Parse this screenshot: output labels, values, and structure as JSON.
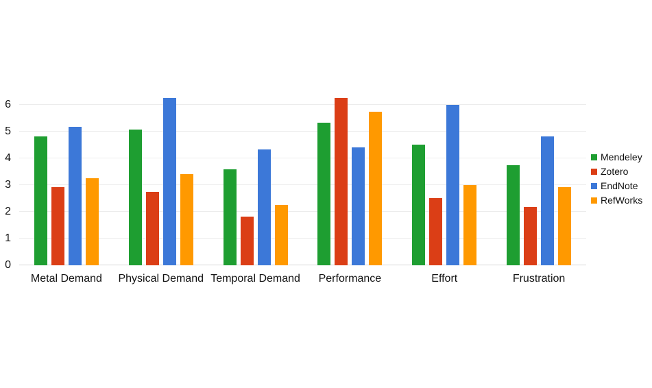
{
  "chart_data": {
    "type": "bar",
    "title": "",
    "xlabel": "",
    "ylabel": "",
    "categories": [
      "Metal Demand",
      "Physical Demand",
      "Temporal Demand",
      "Performance",
      "Effort",
      "Frustration"
    ],
    "series": [
      {
        "name": "Mendeley",
        "color": "#1e9e31",
        "values": [
          4.83,
          5.08,
          3.58,
          5.33,
          4.5,
          3.75
        ]
      },
      {
        "name": "Zotero",
        "color": "#db3e16",
        "values": [
          2.92,
          2.75,
          1.83,
          6.25,
          2.5,
          2.17
        ]
      },
      {
        "name": "EndNote",
        "color": "#3c78d8",
        "values": [
          5.17,
          6.25,
          4.33,
          4.42,
          6.0,
          4.83
        ]
      },
      {
        "name": "RefWorks",
        "color": "#ff9900",
        "values": [
          3.25,
          3.42,
          2.25,
          5.75,
          3.0,
          2.92
        ]
      }
    ],
    "ylim": [
      0,
      7.1
    ],
    "yticks": [
      "0",
      "1",
      "2",
      "3",
      "4",
      "5",
      "6"
    ],
    "grid": true,
    "legend_position": "right",
    "background_color": "#ffffff",
    "gridline_color": "#ececec",
    "baseline_color": "#d6d6d6",
    "text_color": "#111111"
  }
}
